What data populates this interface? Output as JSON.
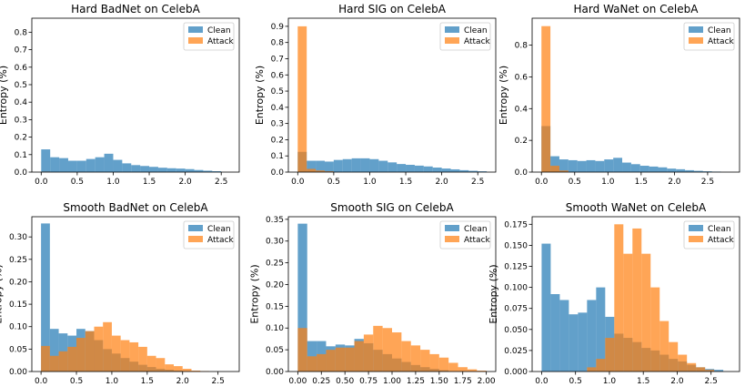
{
  "colors": {
    "clean": "#1f77b4",
    "attack": "#ff7f0e"
  },
  "chart_data": [
    {
      "type": "bar",
      "title": "Hard BadNet on CelebA",
      "ylabel": "Entropy (%)",
      "xlim": [
        -0.13,
        2.75
      ],
      "ylim": [
        0,
        0.88
      ],
      "xticks": [
        0.0,
        0.5,
        1.0,
        1.5,
        2.0,
        2.5
      ],
      "xtick_labels": [
        "0.0",
        "0.5",
        "1.0",
        "1.5",
        "2.0",
        "2.5"
      ],
      "yticks": [
        0,
        0.1,
        0.2,
        0.3,
        0.4,
        0.5,
        0.6,
        0.7,
        0.8
      ],
      "ytick_labels": [
        "0.0",
        "0.1",
        "0.2",
        "0.3",
        "0.4",
        "0.5",
        "0.6",
        "0.7",
        "0.8"
      ],
      "legend": [
        "Clean",
        "Attack"
      ],
      "legend_loc": "upper right",
      "bin_width": 0.125,
      "series": [
        {
          "name": "Clean",
          "x0": 0.0,
          "values": [
            0.13,
            0.085,
            0.08,
            0.065,
            0.065,
            0.075,
            0.085,
            0.105,
            0.07,
            0.05,
            0.04,
            0.035,
            0.03,
            0.025,
            0.022,
            0.02,
            0.017,
            0.012,
            0.008,
            0.005
          ]
        },
        {
          "name": "Attack",
          "x0": 0.0,
          "values": [
            0.0025
          ]
        }
      ]
    },
    {
      "type": "bar",
      "title": "Hard SIG on CelebA",
      "ylabel": "Entropy (%)",
      "xlim": [
        -0.13,
        2.75
      ],
      "ylim": [
        0,
        0.95
      ],
      "xticks": [
        0.0,
        0.5,
        1.0,
        1.5,
        2.0,
        2.5
      ],
      "xtick_labels": [
        "0.0",
        "0.5",
        "1.0",
        "1.5",
        "2.0",
        "2.5"
      ],
      "yticks": [
        0,
        0.1,
        0.2,
        0.3,
        0.4,
        0.5,
        0.6,
        0.7,
        0.8,
        0.9
      ],
      "ytick_labels": [
        "0.0",
        "0.1",
        "0.2",
        "0.3",
        "0.4",
        "0.5",
        "0.6",
        "0.7",
        "0.8",
        "0.9"
      ],
      "legend": [
        "Clean",
        "Attack"
      ],
      "legend_loc": "upper right",
      "bin_width": 0.125,
      "series": [
        {
          "name": "Clean",
          "x0": 0.0,
          "values": [
            0.125,
            0.07,
            0.07,
            0.065,
            0.075,
            0.08,
            0.085,
            0.085,
            0.08,
            0.07,
            0.06,
            0.05,
            0.045,
            0.04,
            0.035,
            0.028,
            0.022,
            0.017,
            0.012,
            0.008,
            0.005
          ]
        },
        {
          "name": "Attack",
          "x0": 0.0,
          "values": [
            0.9,
            0.02,
            0.01,
            0.005
          ]
        }
      ]
    },
    {
      "type": "bar",
      "title": "Hard WaNet on CelebA",
      "ylabel": "Entropy (%)",
      "xlim": [
        -0.14,
        2.98
      ],
      "ylim": [
        0,
        0.97
      ],
      "xticks": [
        0.0,
        0.5,
        1.0,
        1.5,
        2.0,
        2.5
      ],
      "xtick_labels": [
        "0.0",
        "0.5",
        "1.0",
        "1.5",
        "2.0",
        "2.5"
      ],
      "yticks": [
        0,
        0.2,
        0.4,
        0.6,
        0.8
      ],
      "ytick_labels": [
        "0.0",
        "0.2",
        "0.4",
        "0.6",
        "0.8"
      ],
      "legend": [
        "Clean",
        "Attack"
      ],
      "legend_loc": "upper right",
      "bin_width": 0.135,
      "series": [
        {
          "name": "Clean",
          "x0": 0.0,
          "values": [
            0.29,
            0.1,
            0.08,
            0.075,
            0.07,
            0.075,
            0.07,
            0.08,
            0.09,
            0.06,
            0.05,
            0.04,
            0.035,
            0.03,
            0.022,
            0.018,
            0.012,
            0.008,
            0.005,
            0.003
          ]
        },
        {
          "name": "Attack",
          "x0": 0.0,
          "values": [
            0.92,
            0.04,
            0.01
          ]
        }
      ]
    },
    {
      "type": "bar",
      "title": "Smooth BadNet on CelebA",
      "ylabel": "Entropy (%)",
      "xlim": [
        -0.13,
        2.8
      ],
      "ylim": [
        0,
        0.345
      ],
      "xticks": [
        0.0,
        0.5,
        1.0,
        1.5,
        2.0,
        2.5
      ],
      "xtick_labels": [
        "0.0",
        "0.5",
        "1.0",
        "1.5",
        "2.0",
        "2.5"
      ],
      "yticks": [
        0,
        0.05,
        0.1,
        0.15,
        0.2,
        0.25,
        0.3
      ],
      "ytick_labels": [
        "0.00",
        "0.05",
        "0.10",
        "0.15",
        "0.20",
        "0.25",
        "0.30"
      ],
      "legend": [
        "Clean",
        "Attack"
      ],
      "legend_loc": "upper right",
      "bin_width": 0.125,
      "series": [
        {
          "name": "Clean",
          "x0": 0.0,
          "values": [
            0.33,
            0.095,
            0.085,
            0.08,
            0.095,
            0.09,
            0.07,
            0.05,
            0.04,
            0.03,
            0.022,
            0.015,
            0.01,
            0.006,
            0.004,
            0.002
          ]
        },
        {
          "name": "Attack",
          "x0": 0.0,
          "values": [
            0.057,
            0.035,
            0.045,
            0.055,
            0.075,
            0.09,
            0.1,
            0.11,
            0.08,
            0.07,
            0.065,
            0.055,
            0.035,
            0.03,
            0.016,
            0.012,
            0.006,
            0.002,
            0.001
          ]
        }
      ]
    },
    {
      "type": "bar",
      "title": "Smooth SIG on CelebA",
      "ylabel": "Entropy (%)",
      "xlim": [
        -0.1,
        2.1
      ],
      "ylim": [
        0,
        0.356
      ],
      "xticks": [
        0.0,
        0.25,
        0.5,
        0.75,
        1.0,
        1.25,
        1.5,
        1.75,
        2.0
      ],
      "xtick_labels": [
        "0.00",
        "0.25",
        "0.50",
        "0.75",
        "1.00",
        "1.25",
        "1.50",
        "1.75",
        "2.00"
      ],
      "yticks": [
        0,
        0.05,
        0.1,
        0.15,
        0.2,
        0.25,
        0.3,
        0.35
      ],
      "ytick_labels": [
        "0.00",
        "0.05",
        "0.10",
        "0.15",
        "0.20",
        "0.25",
        "0.30",
        "0.35"
      ],
      "legend": [
        "Clean",
        "Attack"
      ],
      "legend_loc": "upper right",
      "bin_width": 0.1,
      "series": [
        {
          "name": "Clean",
          "x0": 0.0,
          "values": [
            0.34,
            0.07,
            0.07,
            0.058,
            0.062,
            0.06,
            0.075,
            0.065,
            0.05,
            0.04,
            0.03,
            0.022,
            0.015,
            0.01,
            0.006,
            0.003
          ]
        },
        {
          "name": "Attack",
          "x0": 0.0,
          "values": [
            0.1,
            0.035,
            0.04,
            0.05,
            0.055,
            0.055,
            0.07,
            0.085,
            0.105,
            0.1,
            0.09,
            0.07,
            0.06,
            0.05,
            0.04,
            0.032,
            0.02,
            0.01,
            0.005,
            0.002
          ]
        }
      ]
    },
    {
      "type": "bar",
      "title": "Smooth WaNet on CelebA",
      "ylabel": "Entropy (%)",
      "xlim": [
        -0.14,
        2.92
      ],
      "ylim": [
        0,
        0.184
      ],
      "xticks": [
        0.0,
        0.5,
        1.0,
        1.5,
        2.0,
        2.5
      ],
      "xtick_labels": [
        "0.0",
        "0.5",
        "1.0",
        "1.5",
        "2.0",
        "2.5"
      ],
      "yticks": [
        0,
        0.025,
        0.05,
        0.075,
        0.1,
        0.125,
        0.15,
        0.175
      ],
      "ytick_labels": [
        "0.000",
        "0.025",
        "0.050",
        "0.075",
        "0.100",
        "0.125",
        "0.150",
        "0.175"
      ],
      "legend": [
        "Clean",
        "Attack"
      ],
      "legend_loc": "upper right",
      "bin_width": 0.134,
      "series": [
        {
          "name": "Clean",
          "x0": 0.0,
          "values": [
            0.152,
            0.092,
            0.085,
            0.068,
            0.07,
            0.085,
            0.1,
            0.065,
            0.045,
            0.04,
            0.035,
            0.028,
            0.025,
            0.02,
            0.015,
            0.012,
            0.008,
            0.005,
            0.003,
            0.002
          ]
        },
        {
          "name": "Attack",
          "x0": 0.0,
          "values": [
            0.0,
            0.0,
            0.0,
            0.0,
            0.0,
            0.005,
            0.015,
            0.04,
            0.175,
            0.14,
            0.17,
            0.14,
            0.1,
            0.06,
            0.035,
            0.02,
            0.01,
            0.005,
            0.002
          ]
        }
      ]
    }
  ]
}
